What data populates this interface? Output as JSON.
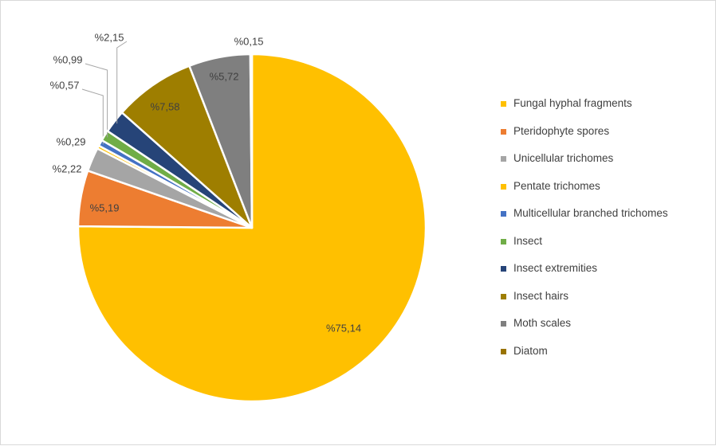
{
  "chart_data": {
    "type": "pie",
    "title": "",
    "start_angle_deg": 0,
    "direction": "clockwise",
    "slices": [
      {
        "label": "Fungal hyphal fragments",
        "value": 75.14,
        "data_label": "%75,14",
        "color": "#FFC000"
      },
      {
        "label": "Pteridophyte spores",
        "value": 5.19,
        "data_label": "%5,19",
        "color": "#ED7D31"
      },
      {
        "label": "Unicellular trichomes",
        "value": 2.22,
        "data_label": "%2,22",
        "color": "#A5A5A5"
      },
      {
        "label": "Pentate trichomes",
        "value": 0.29,
        "data_label": "%0,29",
        "color": "#FFC000"
      },
      {
        "label": "Multicellular branched trichomes",
        "value": 0.57,
        "data_label": "%0,57",
        "color": "#4472C4"
      },
      {
        "label": "Insect",
        "value": 0.99,
        "data_label": "%0,99",
        "color": "#70AD47"
      },
      {
        "label": "Insect extremities",
        "value": 2.15,
        "data_label": "%2,15",
        "color": "#264478"
      },
      {
        "label": "Insect hairs",
        "value": 7.58,
        "data_label": "%7,58",
        "color": "#9E7E00"
      },
      {
        "label": "Moth scales",
        "value": 5.72,
        "data_label": "%5,72",
        "color": "#7F7F7F"
      },
      {
        "label": "Diatom",
        "value": 0.15,
        "data_label": "%0,15",
        "color": "#997300"
      }
    ],
    "legend_position": "right"
  }
}
